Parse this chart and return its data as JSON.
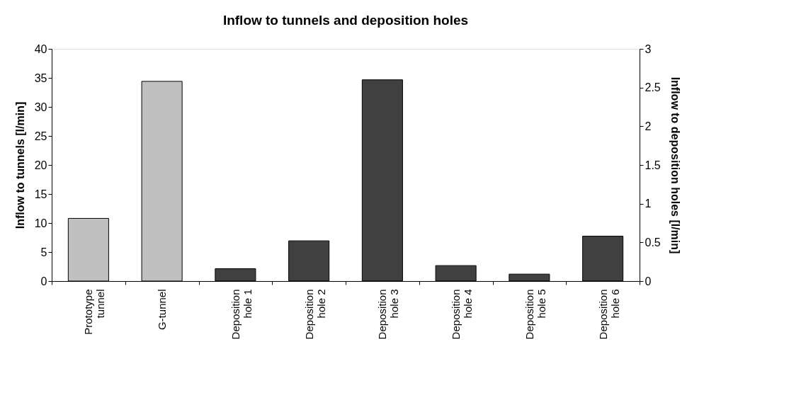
{
  "chart_data": {
    "type": "bar",
    "title": "Inflow to tunnels and deposition holes",
    "categories": [
      "Prototype tunnel",
      "G-tunnel",
      "Deposition hole 1",
      "Deposition hole 2",
      "Deposition hole 3",
      "Deposition hole 4",
      "Deposition hole 5",
      "Deposition hole 6"
    ],
    "ylabel": "Inflow to tunnels [l/min]",
    "y2label": "Inflow to deposition holes [l/min]",
    "series": [
      {
        "color": "#c0c0c0",
        "axis": "y",
        "values": [
          10.8,
          34.4,
          null,
          null,
          null,
          null,
          null,
          null
        ]
      },
      {
        "color": "#404040",
        "axis": "y2",
        "values": [
          null,
          null,
          0.16,
          0.52,
          2.6,
          0.2,
          0.09,
          0.58
        ]
      }
    ],
    "ylim": [
      0,
      40
    ],
    "yticks": [
      0,
      5,
      10,
      15,
      20,
      25,
      30,
      35,
      40
    ],
    "y2lim": [
      0,
      3
    ],
    "y2ticks": [
      0,
      0.5,
      1,
      1.5,
      2,
      2.5,
      3
    ],
    "grid": false
  }
}
